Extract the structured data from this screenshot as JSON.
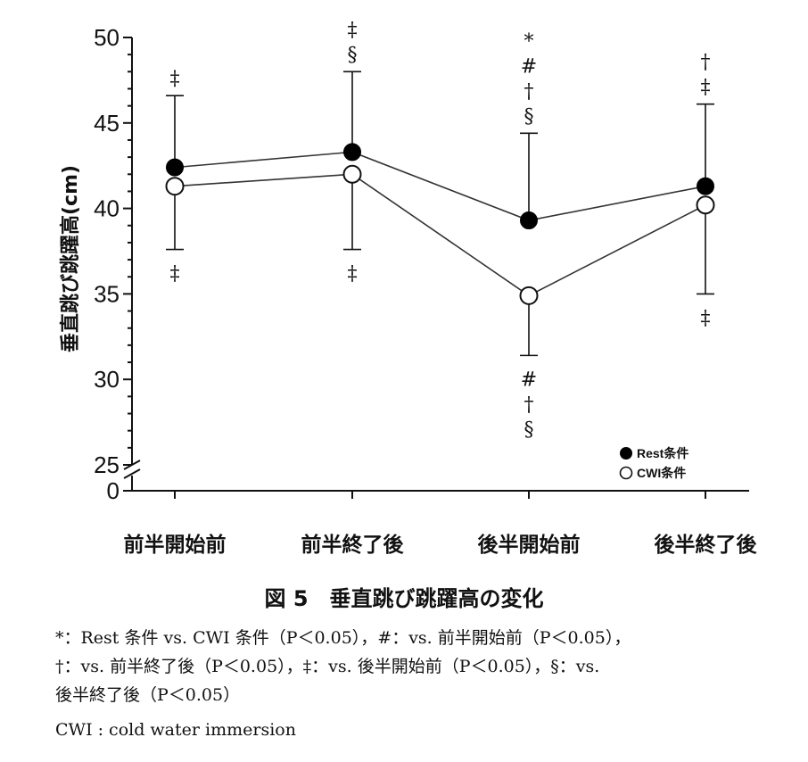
{
  "chart_data": {
    "type": "line",
    "title": "",
    "ylabel": "垂直跳び跳躍高(cm)",
    "xlabel": "",
    "categories": [
      "前半開始前",
      "前半終了後",
      "後半開始前",
      "後半終了後"
    ],
    "ylim": [
      25,
      50
    ],
    "y_axis_break": true,
    "y_axis_bottom_label": "0",
    "yticks": [
      25,
      30,
      35,
      40,
      45,
      50
    ],
    "series": [
      {
        "name": "Rest条件",
        "marker": "filled-circle",
        "color": "#000000",
        "values": [
          42.4,
          43.3,
          39.3,
          41.3
        ],
        "error_upper": [
          46.6,
          48.0,
          44.4,
          46.1
        ]
      },
      {
        "name": "CWI条件",
        "marker": "open-circle",
        "color": "#ffffff",
        "values": [
          41.3,
          42.0,
          34.9,
          40.2
        ],
        "error_lower": [
          37.6,
          37.6,
          31.4,
          35.0
        ]
      }
    ],
    "annotations_above": [
      [
        "‡"
      ],
      [
        "‡",
        "§"
      ],
      [
        "*",
        "#",
        "†",
        "§"
      ],
      [
        "†",
        "‡"
      ]
    ],
    "annotations_below": [
      [
        "‡"
      ],
      [
        "‡"
      ],
      [
        "#",
        "†",
        "§"
      ],
      [
        "‡"
      ]
    ],
    "legend_position": "bottom-right",
    "grid": false
  },
  "caption": {
    "title": "図 5　垂直跳び跳躍高の変化",
    "notes": [
      "*：Rest 条件 vs. CWI 条件（P＜0.05），#：vs. 前半開始前（P＜0.05），",
      "†：vs. 前半終了後（P＜0.05），‡：vs. 後半開始前（P＜0.05），§：vs.",
      "後半終了後（P＜0.05）",
      "CWI : cold water immersion"
    ]
  }
}
